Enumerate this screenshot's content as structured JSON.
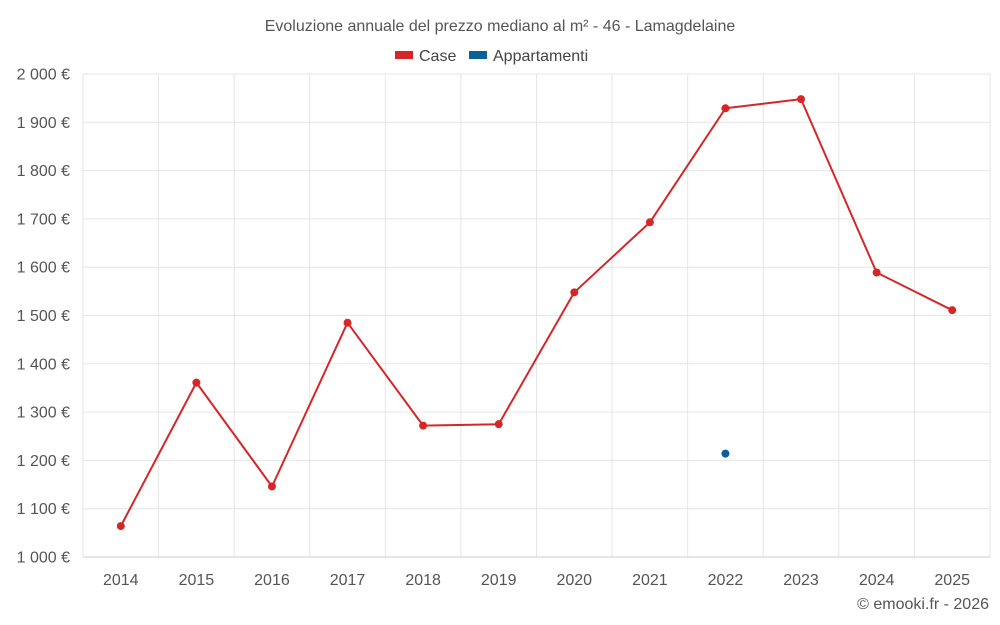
{
  "chart_data": {
    "type": "line",
    "title": "Evoluzione annuale del prezzo mediano al m² - 46 - Lamagdelaine",
    "categories": [
      "2014",
      "2015",
      "2016",
      "2017",
      "2018",
      "2019",
      "2020",
      "2021",
      "2022",
      "2023",
      "2024",
      "2025"
    ],
    "series": [
      {
        "name": "Case",
        "color": "#d62728",
        "values": [
          1064,
          1361,
          1146,
          1485,
          1272,
          1275,
          1548,
          1693,
          1929,
          1948,
          1589,
          1511
        ]
      },
      {
        "name": "Appartamenti",
        "color": "#0a6099",
        "values": [
          null,
          null,
          null,
          null,
          null,
          null,
          null,
          null,
          1214,
          null,
          null,
          null
        ]
      }
    ],
    "ylim": [
      1000,
      2000
    ],
    "ytick_values": [
      1000,
      1100,
      1200,
      1300,
      1400,
      1500,
      1600,
      1700,
      1800,
      1900,
      2000
    ],
    "ytick_labels": [
      "1 000 €",
      "1 100 €",
      "1 200 €",
      "1 300 €",
      "1 400 €",
      "1 500 €",
      "1 600 €",
      "1 700 €",
      "1 800 €",
      "1 900 €",
      "2 000 €"
    ],
    "grid": true,
    "legend_position": "top-center",
    "credit": "© emooki.fr - 2026"
  }
}
